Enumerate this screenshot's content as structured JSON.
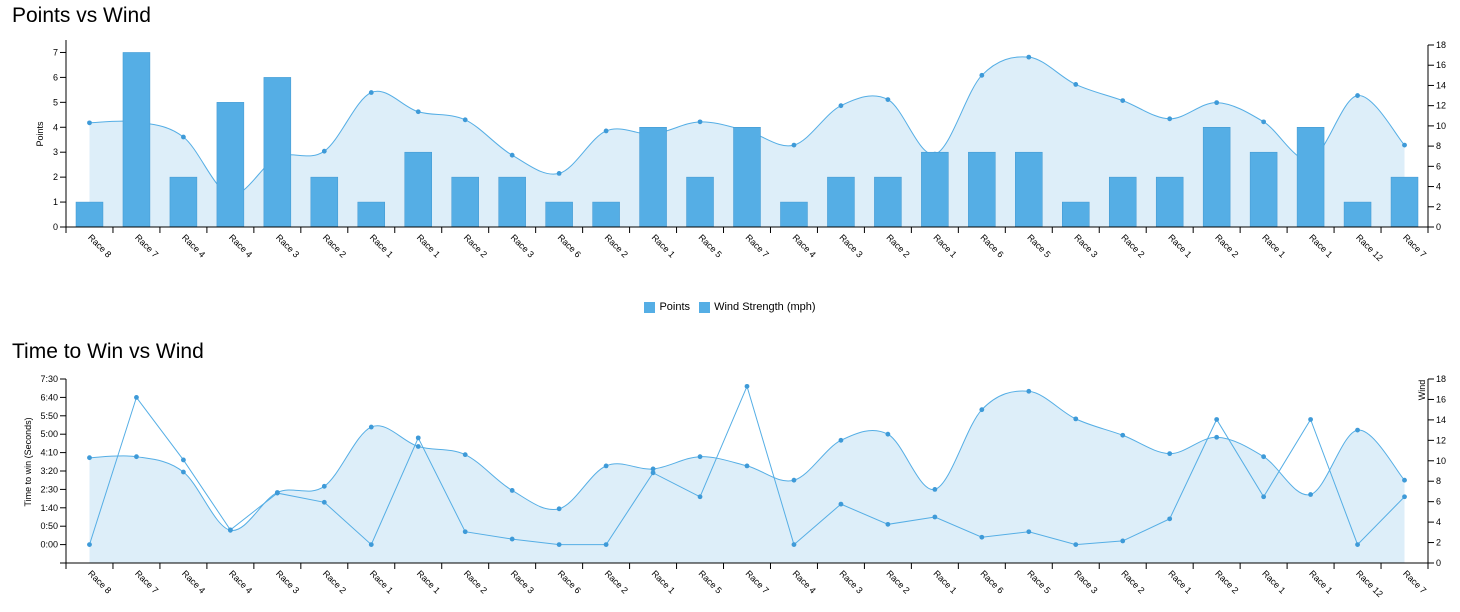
{
  "colors": {
    "bar": "#55aee5",
    "bar_stroke": "#3e96d0",
    "line": "#55aee5",
    "area": "#ddeef9",
    "point": "#3e9ad8"
  },
  "legend": {
    "items": [
      "Points",
      "Wind Strength (mph)"
    ]
  },
  "chart_data": [
    {
      "type": "bar",
      "title": "Points vs Wind",
      "categories": [
        "Race 8",
        "Race 7",
        "Race 4",
        "Race 4",
        "Race 3",
        "Race 2",
        "Race 1",
        "Race 1",
        "Race 2",
        "Race 3",
        "Race 6",
        "Race 2",
        "Race 1",
        "Race 5",
        "Race 7",
        "Race 4",
        "Race 3",
        "Race 2",
        "Race 1",
        "Race 6",
        "Race 5",
        "Race 3",
        "Race 2",
        "Race 1",
        "Race 2",
        "Race 1",
        "Race 1",
        "Race 12",
        "Race 7"
      ],
      "series": [
        {
          "name": "Points",
          "type": "bar",
          "axis": "left",
          "values": [
            1,
            7,
            2,
            5,
            6,
            2,
            1,
            3,
            2,
            2,
            1,
            1,
            4,
            2,
            4,
            1,
            2,
            2,
            3,
            3,
            3,
            1,
            2,
            2,
            4,
            3,
            4,
            1,
            2
          ]
        },
        {
          "name": "Wind Strength (mph)",
          "type": "area",
          "axis": "right",
          "values": [
            10.3,
            10.4,
            8.9,
            3.2,
            6.9,
            7.5,
            13.3,
            11.4,
            10.6,
            7.1,
            5.3,
            9.5,
            9.2,
            10.4,
            9.5,
            8.1,
            12.0,
            12.6,
            7.2,
            15.0,
            16.8,
            14.1,
            12.5,
            10.7,
            12.3,
            10.4,
            6.7,
            13.0,
            8.1
          ]
        }
      ],
      "ylabel": "Points",
      "ylim": [
        0,
        7.5
      ],
      "yticks": [
        "0",
        "1",
        "2",
        "3",
        "4",
        "5",
        "6",
        "7"
      ],
      "y2label": "",
      "y2lim": [
        0,
        18
      ],
      "y2ticks": [
        "0",
        "2",
        "4",
        "6",
        "8",
        "10",
        "12",
        "14",
        "16",
        "18"
      ],
      "legend_position": "bottom-center",
      "grid": false
    },
    {
      "type": "line",
      "title": "Time to Win vs Wind",
      "categories": [
        "Race 8",
        "Race 7",
        "Race 4",
        "Race 4",
        "Race 3",
        "Race 2",
        "Race 1",
        "Race 1",
        "Race 2",
        "Race 3",
        "Race 6",
        "Race 2",
        "Race 1",
        "Race 5",
        "Race 7",
        "Race 4",
        "Race 3",
        "Race 2",
        "Race 1",
        "Race 6",
        "Race 5",
        "Race 3",
        "Race 2",
        "Race 1",
        "Race 2",
        "Race 1",
        "Race 1",
        "Race 12",
        "Race 7"
      ],
      "series": [
        {
          "type": "line",
          "axis": "left",
          "values": [
            0,
            400,
            230,
            40,
            140,
            115,
            0,
            290,
            35,
            15,
            0,
            0,
            195,
            130,
            430,
            0,
            110,
            55,
            75,
            20,
            35,
            0,
            10,
            70,
            340,
            130,
            340,
            0,
            130
          ]
        },
        {
          "type": "area",
          "axis": "right",
          "values": [
            10.3,
            10.4,
            8.9,
            3.2,
            6.9,
            7.5,
            13.3,
            11.4,
            10.6,
            7.1,
            5.3,
            9.5,
            9.2,
            10.4,
            9.5,
            8.1,
            12.0,
            12.6,
            7.2,
            15.0,
            16.8,
            14.1,
            12.5,
            10.7,
            12.3,
            10.4,
            6.7,
            13.0,
            8.1
          ]
        }
      ],
      "ylabel": "Time to win (Seconds)",
      "ylim": [
        -50,
        450
      ],
      "yticks": [
        {
          "label": "0:00",
          "value": 0
        },
        {
          "label": "0:50",
          "value": 50
        },
        {
          "label": "1:40",
          "value": 100
        },
        {
          "label": "2:30",
          "value": 150
        },
        {
          "label": "3:20",
          "value": 200
        },
        {
          "label": "4:10",
          "value": 250
        },
        {
          "label": "5:00",
          "value": 300
        },
        {
          "label": "5:50",
          "value": 350
        },
        {
          "label": "6:40",
          "value": 400
        },
        {
          "label": "7:30",
          "value": 450
        }
      ],
      "y2label": "Wind",
      "y2lim": [
        0,
        18
      ],
      "y2ticks": [
        "0",
        "2",
        "4",
        "6",
        "8",
        "10",
        "12",
        "14",
        "16",
        "18"
      ],
      "grid": false
    }
  ]
}
